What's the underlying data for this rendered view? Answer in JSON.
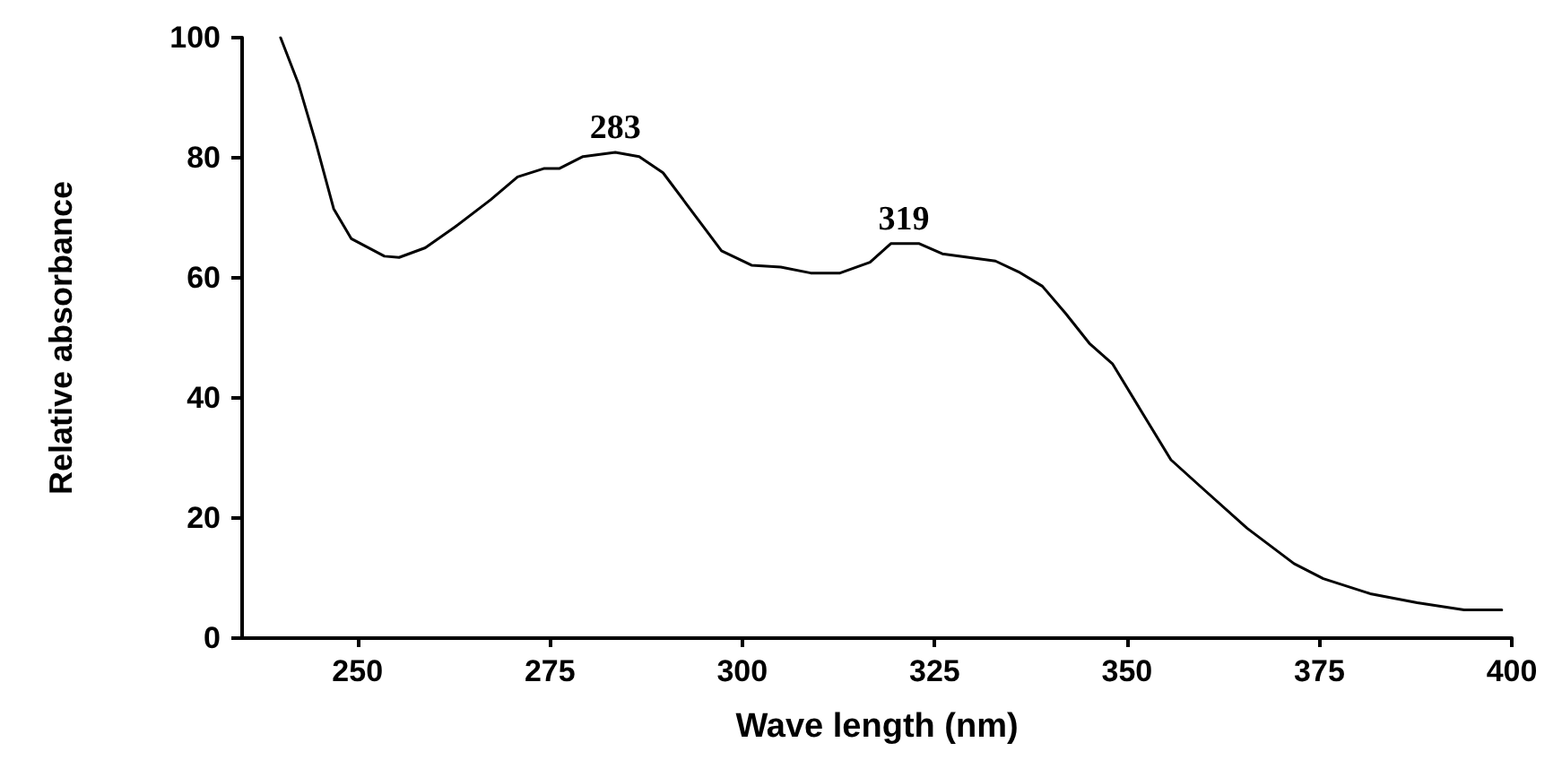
{
  "chart_data": {
    "type": "line",
    "xlabel": "Wave length (nm)",
    "ylabel": "Relative absorbance",
    "x": [
      240.0,
      242.3,
      244.6,
      246.9,
      249.2,
      253.5,
      255.4,
      258.8,
      262.7,
      267.3,
      270.8,
      274.2,
      276.2,
      279.3,
      283.5,
      286.6,
      289.7,
      293.5,
      297.3,
      301.2,
      305.0,
      308.9,
      312.7,
      316.6,
      319.3,
      323.0,
      326.0,
      332.9,
      335.9,
      339.0,
      342.0,
      345.1,
      348.1,
      351.9,
      355.7,
      359.5,
      365.6,
      371.7,
      375.5,
      381.6,
      387.7,
      393.8,
      398.7
    ],
    "series": [
      {
        "color": "#000000",
        "values": [
          100,
          92.4,
          82.4,
          71.5,
          66.5,
          63.6,
          63.4,
          65.0,
          68.5,
          73.0,
          76.8,
          78.2,
          78.2,
          80.2,
          80.9,
          80.2,
          77.5,
          71.0,
          64.5,
          62.1,
          61.8,
          60.8,
          60.8,
          62.6,
          65.7,
          65.7,
          64.0,
          62.8,
          61.0,
          58.6,
          54.1,
          49.1,
          45.7,
          37.7,
          29.7,
          25.3,
          18.3,
          12.4,
          9.9,
          7.4,
          5.9,
          4.7,
          4.7
        ]
      }
    ],
    "annotations": [
      {
        "text": "283",
        "x": 283.5,
        "y": 80.9
      },
      {
        "text": "319",
        "x": 321,
        "y": 65.7
      }
    ],
    "xlim": [
      235,
      400
    ],
    "xticks": [
      250,
      275,
      300,
      325,
      350,
      375,
      400
    ],
    "ylim": [
      0,
      100
    ],
    "yticks": [
      0,
      20,
      40,
      60,
      80,
      100
    ],
    "marker": "none",
    "line_style": "solid"
  }
}
